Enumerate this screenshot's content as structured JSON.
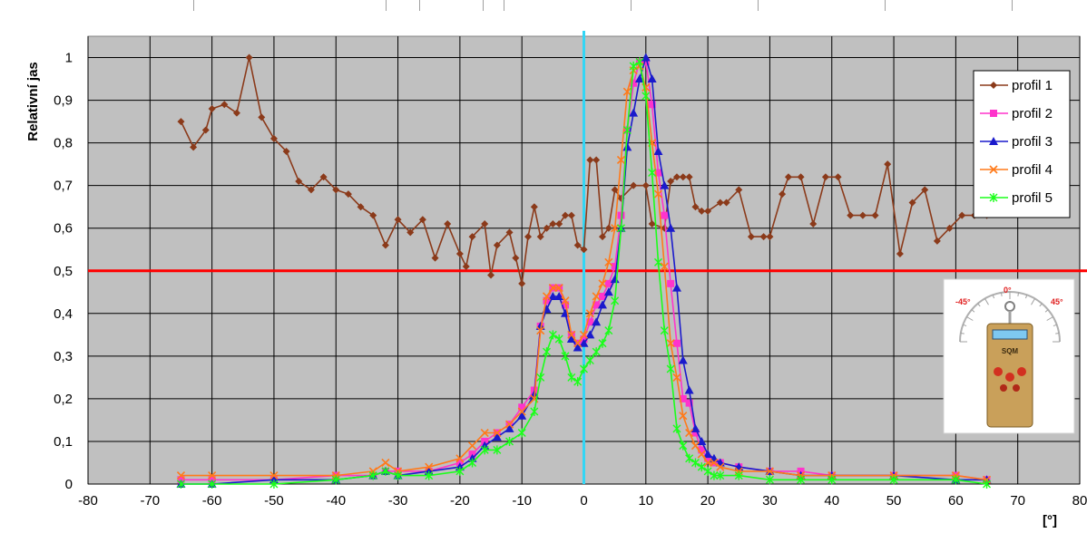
{
  "chart_data": {
    "type": "line",
    "title": "",
    "xlabel": "[°]",
    "ylabel": "Relativní jas",
    "xlim": [
      -80,
      80
    ],
    "ylim": [
      0,
      1.05
    ],
    "x_ticks": [
      "-80",
      "-70",
      "-60",
      "-50",
      "-40",
      "-30",
      "-20",
      "-10",
      "0",
      "10",
      "20",
      "30",
      "40",
      "50",
      "60",
      "70",
      "80"
    ],
    "y_ticks": [
      "0",
      "0,1",
      "0,2",
      "0,3",
      "0,4",
      "0,5",
      "0,6",
      "0,7",
      "0,8",
      "0,9",
      "1"
    ],
    "grid": true,
    "legend_position": "top-right",
    "reference_lines": [
      {
        "orientation": "horizontal",
        "value": 0.5,
        "color": "#ff0000"
      },
      {
        "orientation": "vertical",
        "value": 0,
        "color": "#33d6f5"
      }
    ],
    "inset": {
      "labels": [
        "-45°",
        "0°",
        "45°",
        "SQM"
      ]
    },
    "series": [
      {
        "name": "profil 1",
        "color": "#8b3a1a",
        "marker": "diamond",
        "x": [
          -65,
          -63,
          -61,
          -60,
          -58,
          -56,
          -54,
          -52,
          -50,
          -48,
          -46,
          -44,
          -42,
          -40,
          -38,
          -36,
          -34,
          -32,
          -30,
          -28,
          -26,
          -24,
          -22,
          -20,
          -19,
          -18,
          -16,
          -15,
          -14,
          -12,
          -11,
          -10,
          -9,
          -8,
          -7,
          -6,
          -5,
          -4,
          -3,
          -2,
          -1,
          0,
          1,
          2,
          3,
          4,
          5,
          6,
          8,
          10,
          11,
          13,
          14,
          15,
          16,
          17,
          18,
          19,
          20,
          22,
          23,
          25,
          27,
          29,
          30,
          32,
          33,
          35,
          37,
          39,
          41,
          43,
          45,
          47,
          49,
          51,
          53,
          55,
          57,
          59,
          61,
          63,
          65
        ],
        "y": [
          0.85,
          0.79,
          0.83,
          0.88,
          0.89,
          0.87,
          1.0,
          0.86,
          0.81,
          0.78,
          0.71,
          0.69,
          0.72,
          0.69,
          0.68,
          0.65,
          0.63,
          0.56,
          0.62,
          0.59,
          0.62,
          0.53,
          0.61,
          0.54,
          0.51,
          0.58,
          0.61,
          0.49,
          0.56,
          0.59,
          0.53,
          0.47,
          0.58,
          0.65,
          0.58,
          0.6,
          0.61,
          0.61,
          0.63,
          0.63,
          0.56,
          0.55,
          0.76,
          0.76,
          0.58,
          0.6,
          0.69,
          0.67,
          0.7,
          0.7,
          0.61,
          0.6,
          0.71,
          0.72,
          0.72,
          0.72,
          0.65,
          0.64,
          0.64,
          0.66,
          0.66,
          0.69,
          0.58,
          0.58,
          0.58,
          0.68,
          0.72,
          0.72,
          0.61,
          0.72,
          0.72,
          0.63,
          0.63,
          0.63,
          0.75,
          0.54,
          0.66,
          0.69,
          0.57,
          0.6,
          0.63,
          0.63,
          0.63
        ]
      },
      {
        "name": "profil 2",
        "color": "#ff33cc",
        "marker": "square",
        "x": [
          -65,
          -60,
          -50,
          -40,
          -34,
          -32,
          -30,
          -25,
          -20,
          -18,
          -16,
          -14,
          -12,
          -10,
          -8,
          -7,
          -6,
          -5,
          -4,
          -3,
          -2,
          -1,
          0,
          1,
          2,
          3,
          4,
          5,
          6,
          7,
          8,
          9,
          10,
          11,
          12,
          13,
          14,
          15,
          16,
          17,
          18,
          19,
          20,
          21,
          22,
          25,
          30,
          35,
          40,
          50,
          60,
          65
        ],
        "y": [
          0.01,
          0.01,
          0.01,
          0.02,
          0.02,
          0.03,
          0.03,
          0.03,
          0.05,
          0.07,
          0.1,
          0.12,
          0.14,
          0.18,
          0.22,
          0.37,
          0.43,
          0.46,
          0.46,
          0.42,
          0.35,
          0.33,
          0.34,
          0.38,
          0.42,
          0.44,
          0.47,
          0.51,
          0.63,
          0.83,
          0.94,
          0.99,
          0.99,
          0.89,
          0.73,
          0.63,
          0.47,
          0.33,
          0.2,
          0.19,
          0.12,
          0.08,
          0.06,
          0.05,
          0.05,
          0.04,
          0.03,
          0.03,
          0.02,
          0.02,
          0.02,
          0.01
        ]
      },
      {
        "name": "profil 3",
        "color": "#1a1acc",
        "marker": "triangle",
        "x": [
          -65,
          -60,
          -50,
          -40,
          -34,
          -32,
          -30,
          -25,
          -20,
          -18,
          -16,
          -14,
          -12,
          -10,
          -8,
          -7,
          -6,
          -5,
          -4,
          -3,
          -2,
          -1,
          0,
          1,
          2,
          3,
          4,
          5,
          6,
          7,
          8,
          9,
          10,
          11,
          12,
          13,
          14,
          15,
          16,
          17,
          18,
          19,
          20,
          21,
          22,
          25,
          30,
          35,
          40,
          50,
          60,
          65
        ],
        "y": [
          0.0,
          0.0,
          0.01,
          0.01,
          0.02,
          0.03,
          0.02,
          0.03,
          0.04,
          0.06,
          0.09,
          0.11,
          0.13,
          0.16,
          0.21,
          0.37,
          0.41,
          0.44,
          0.44,
          0.4,
          0.34,
          0.32,
          0.33,
          0.35,
          0.38,
          0.42,
          0.45,
          0.48,
          0.6,
          0.79,
          0.87,
          0.95,
          1.0,
          0.95,
          0.78,
          0.7,
          0.6,
          0.46,
          0.29,
          0.22,
          0.13,
          0.1,
          0.07,
          0.06,
          0.05,
          0.04,
          0.03,
          0.02,
          0.02,
          0.02,
          0.01,
          0.01
        ]
      },
      {
        "name": "profil 4",
        "color": "#ff7a1a",
        "marker": "x",
        "x": [
          -65,
          -60,
          -50,
          -40,
          -34,
          -32,
          -30,
          -25,
          -20,
          -18,
          -16,
          -14,
          -12,
          -10,
          -8,
          -7,
          -6,
          -5,
          -4,
          -3,
          -2,
          -1,
          0,
          1,
          2,
          3,
          4,
          5,
          6,
          7,
          8,
          9,
          10,
          11,
          12,
          13,
          14,
          15,
          16,
          17,
          18,
          19,
          20,
          21,
          22,
          25,
          30,
          35,
          40,
          50,
          60,
          65
        ],
        "y": [
          0.02,
          0.02,
          0.02,
          0.02,
          0.03,
          0.05,
          0.03,
          0.04,
          0.06,
          0.09,
          0.12,
          0.12,
          0.14,
          0.17,
          0.2,
          0.36,
          0.44,
          0.46,
          0.46,
          0.43,
          0.35,
          0.33,
          0.35,
          0.4,
          0.44,
          0.47,
          0.52,
          0.6,
          0.76,
          0.92,
          0.97,
          0.98,
          0.93,
          0.8,
          0.68,
          0.51,
          0.33,
          0.25,
          0.16,
          0.12,
          0.09,
          0.07,
          0.05,
          0.05,
          0.04,
          0.03,
          0.03,
          0.02,
          0.02,
          0.02,
          0.02,
          0.01
        ]
      },
      {
        "name": "profil 5",
        "color": "#1aff1a",
        "marker": "star",
        "x": [
          -65,
          -60,
          -50,
          -40,
          -34,
          -32,
          -30,
          -25,
          -20,
          -18,
          -16,
          -14,
          -12,
          -10,
          -8,
          -7,
          -6,
          -5,
          -4,
          -3,
          -2,
          -1,
          0,
          1,
          2,
          3,
          4,
          5,
          6,
          7,
          8,
          9,
          10,
          11,
          12,
          13,
          14,
          15,
          16,
          17,
          18,
          19,
          20,
          21,
          22,
          25,
          30,
          35,
          40,
          50,
          60,
          65
        ],
        "y": [
          0.0,
          0.0,
          0.0,
          0.01,
          0.02,
          0.03,
          0.02,
          0.02,
          0.03,
          0.05,
          0.08,
          0.08,
          0.1,
          0.12,
          0.17,
          0.25,
          0.31,
          0.35,
          0.34,
          0.3,
          0.25,
          0.24,
          0.27,
          0.29,
          0.31,
          0.33,
          0.36,
          0.43,
          0.6,
          0.83,
          0.98,
          0.99,
          0.91,
          0.73,
          0.52,
          0.36,
          0.27,
          0.13,
          0.09,
          0.06,
          0.05,
          0.04,
          0.03,
          0.02,
          0.02,
          0.02,
          0.01,
          0.01,
          0.01,
          0.01,
          0.01,
          0.0
        ]
      }
    ]
  }
}
